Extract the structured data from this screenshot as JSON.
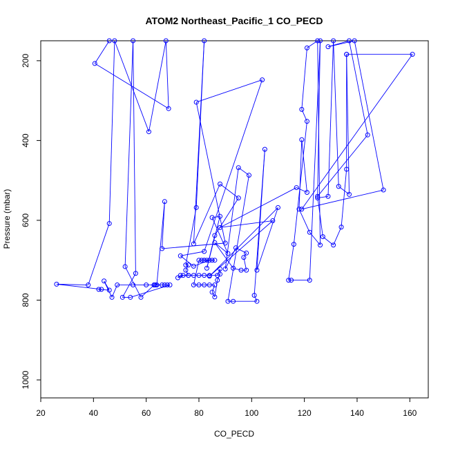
{
  "chart_data": {
    "type": "line",
    "title": "ATOM2 Northeast_Pacific_1 CO_PECD",
    "xlabel": "CO_PECD",
    "ylabel": "Pressure (mbar)",
    "xlim": [
      20,
      167
    ],
    "ylim": [
      150,
      1045
    ],
    "y_reversed": true,
    "x_ticks": [
      20,
      40,
      60,
      80,
      100,
      120,
      140,
      160
    ],
    "y_ticks": [
      200,
      400,
      600,
      800,
      1000
    ],
    "grid": false,
    "legend": "none",
    "series_color": "#0000ff",
    "points": [
      [
        46,
        150
      ],
      [
        40.5,
        207
      ],
      [
        68.5,
        320
      ],
      [
        67.5,
        150
      ],
      [
        61,
        378
      ],
      [
        48,
        150
      ],
      [
        46,
        608
      ],
      [
        38,
        762
      ],
      [
        26,
        760
      ],
      [
        43,
        773
      ],
      [
        42,
        773
      ],
      [
        46,
        775
      ],
      [
        44,
        752
      ],
      [
        47,
        793
      ],
      [
        49,
        762
      ],
      [
        55,
        762
      ],
      [
        60,
        762
      ],
      [
        63,
        762
      ],
      [
        63.5,
        762
      ],
      [
        64,
        762
      ],
      [
        66,
        762
      ],
      [
        67,
        762
      ],
      [
        68,
        762
      ],
      [
        69,
        762
      ],
      [
        54,
        793
      ],
      [
        51,
        793
      ],
      [
        56,
        733
      ],
      [
        55,
        150
      ],
      [
        52,
        716
      ],
      [
        58,
        793
      ],
      [
        63,
        762
      ],
      [
        63,
        762
      ],
      [
        64,
        762
      ],
      [
        67,
        553
      ],
      [
        66,
        671
      ],
      [
        90,
        657
      ],
      [
        79,
        304
      ],
      [
        104,
        248
      ],
      [
        82,
        678
      ],
      [
        73,
        689
      ],
      [
        78,
        715
      ],
      [
        84,
        700
      ],
      [
        83,
        700
      ],
      [
        82,
        700
      ],
      [
        82,
        700
      ],
      [
        86,
        700
      ],
      [
        85,
        700
      ],
      [
        81,
        700
      ],
      [
        80,
        700
      ],
      [
        78,
        762
      ],
      [
        80,
        762
      ],
      [
        82,
        762
      ],
      [
        84,
        762
      ],
      [
        86,
        762
      ],
      [
        85,
        780
      ],
      [
        86,
        792
      ],
      [
        87,
        750
      ],
      [
        88,
        735
      ],
      [
        88,
        722
      ],
      [
        87,
        738
      ],
      [
        84,
        738
      ],
      [
        82,
        738
      ],
      [
        80,
        738
      ],
      [
        78,
        738
      ],
      [
        76,
        738
      ],
      [
        74,
        738
      ],
      [
        72,
        744
      ],
      [
        73,
        738
      ],
      [
        76,
        738
      ],
      [
        75,
        725
      ],
      [
        76,
        712
      ],
      [
        75,
        712
      ],
      [
        79,
        568
      ],
      [
        82,
        150
      ],
      [
        78,
        659
      ],
      [
        88,
        509
      ],
      [
        95,
        544
      ],
      [
        86,
        638
      ],
      [
        83,
        720
      ],
      [
        88,
        590
      ],
      [
        85,
        593
      ],
      [
        91,
        683
      ],
      [
        86,
        656
      ],
      [
        93,
        720
      ],
      [
        96,
        725
      ],
      [
        98,
        725
      ],
      [
        97,
        693
      ],
      [
        98,
        682
      ],
      [
        94,
        669
      ],
      [
        90,
        722
      ],
      [
        95,
        468
      ],
      [
        99,
        487
      ],
      [
        91,
        803
      ],
      [
        93,
        803
      ],
      [
        102,
        803
      ],
      [
        101,
        788
      ],
      [
        105,
        422
      ],
      [
        102,
        725
      ],
      [
        110,
        568
      ],
      [
        84,
        740
      ],
      [
        108,
        601
      ],
      [
        88,
        618
      ],
      [
        117,
        518
      ],
      [
        121,
        530
      ],
      [
        119,
        398
      ],
      [
        118,
        572
      ],
      [
        122,
        630
      ],
      [
        126,
        662
      ],
      [
        125,
        150
      ],
      [
        121,
        168
      ],
      [
        119,
        322
      ],
      [
        121,
        352
      ],
      [
        116,
        660
      ],
      [
        114,
        750
      ],
      [
        115,
        750
      ],
      [
        122,
        750
      ],
      [
        126,
        150
      ],
      [
        125,
        544
      ],
      [
        129,
        540
      ],
      [
        131,
        150
      ],
      [
        133,
        515
      ],
      [
        137,
        535
      ],
      [
        136,
        184
      ],
      [
        136,
        472
      ],
      [
        134,
        617
      ],
      [
        131,
        662
      ],
      [
        127,
        641
      ],
      [
        125,
        540
      ],
      [
        144,
        386
      ],
      [
        137,
        150
      ],
      [
        129,
        165
      ],
      [
        139,
        150
      ],
      [
        150,
        524
      ],
      [
        119,
        572
      ],
      [
        161,
        184
      ],
      [
        136,
        184
      ]
    ]
  }
}
